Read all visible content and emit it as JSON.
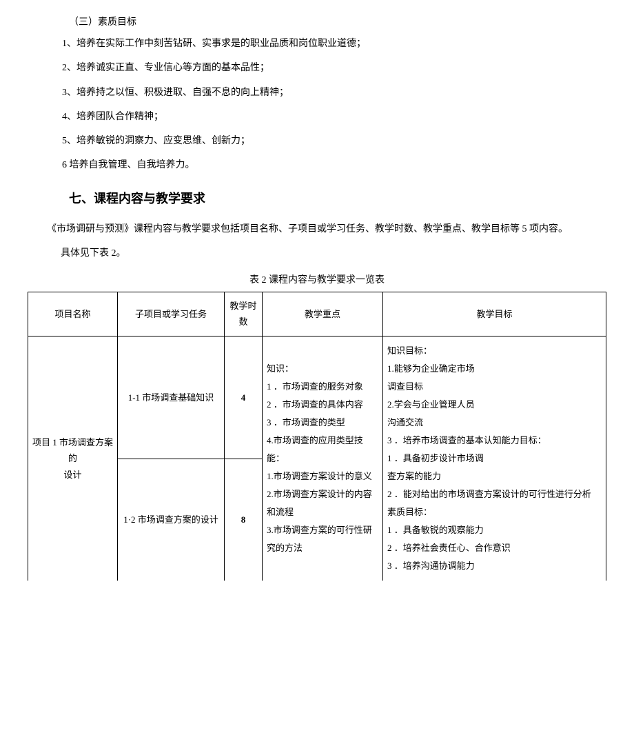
{
  "subtitle": "（三）素质目标",
  "list": [
    "1、培养在实际工作中刻苦钻研、实事求是的职业品质和岗位职业道德；",
    "2、培养诚实正直、专业信心等方面的基本品性；",
    "3、培养持之以恒、积极进取、自强不息的向上精神；",
    "4、培养团队合作精神；",
    "5、培养敏锐的洞察力、应变思维、创新力；",
    "6 培养自我管理、自我培养力。"
  ],
  "heading": "七、课程内容与教学要求",
  "para1": "《市场调研与预测》课程内容与教学要求包括项目名称、子项目或学习任务、教学时数、教学重点、教学目标等 5 项内容。",
  "para2": "具体见下表 2。",
  "tableCaption": "表 2 课程内容与教学要求一览表",
  "headers": {
    "c1": "项目名称",
    "c2": "子项目或学习任务",
    "c3": "教学时数",
    "c4": "教学重点",
    "c5": "教学目标"
  },
  "row": {
    "name_l1": "项目 1 市场调查方案",
    "name_l2": "的",
    "name_l3": "设计",
    "task1": "1-1 市场调查基础知识",
    "hours1": "4",
    "task2": "1·2 市场调查方案的设计",
    "hours2": "8",
    "focus": "知识：\n1 ．市场调查的服务对象\n2 ．市场调查的具体内容\n3 ．市场调查的类型\n4.市场调查的应用类型技能：\n1.市场调查方案设计的意义\n2.市场调查方案设计的内容和流程\n3.市场调查方案的可行性研究的方法",
    "goal": "知识目标：\n1.能够为企业确定市场\n调查目标\n2.学会与企业管理人员\n沟通交流\n3 ．培养市场调查的基本认知能力目标：\n1 ．具备初步设计市场调\n查方案的能力\n2 ．能对给出的市场调查方案设计的可行性进行分析\n素质目标：\n1 ．具备敏锐的观察能力\n2 ．培养社会责任心、合作意识\n3 ．培养沟通协调能力"
  }
}
